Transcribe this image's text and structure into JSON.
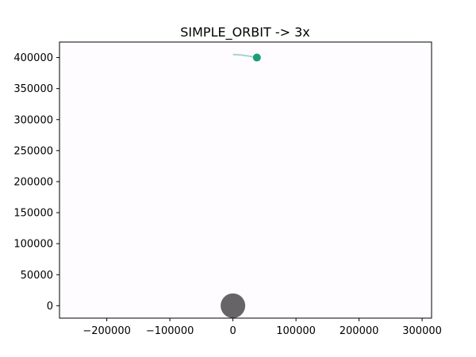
{
  "chart_data": {
    "type": "scatter",
    "title": "SIMPLE_ORBIT -> 3x",
    "xlabel": "",
    "ylabel": "",
    "xlim": [
      -275000,
      315000
    ],
    "ylim": [
      -20000,
      425000
    ],
    "xticks": [
      -200000,
      -100000,
      0,
      100000,
      200000,
      300000
    ],
    "xtick_labels": [
      "−200000",
      "−100000",
      "0",
      "100000",
      "200000",
      "300000"
    ],
    "yticks": [
      0,
      50000,
      100000,
      150000,
      200000,
      250000,
      300000,
      350000,
      400000
    ],
    "ytick_labels": [
      "0",
      "50000",
      "100000",
      "150000",
      "200000",
      "250000",
      "300000",
      "350000",
      "400000"
    ],
    "grid": false,
    "central_body": {
      "x": 0,
      "y": 0,
      "color": "#666466"
    },
    "orbiter": {
      "x": 38000,
      "y": 400000,
      "color": "#1b9e77"
    },
    "trail": {
      "color": "#1b9e77",
      "points": [
        [
          0,
          405000
        ],
        [
          12000,
          404200
        ],
        [
          24000,
          402600
        ],
        [
          38000,
          400000
        ]
      ]
    }
  }
}
